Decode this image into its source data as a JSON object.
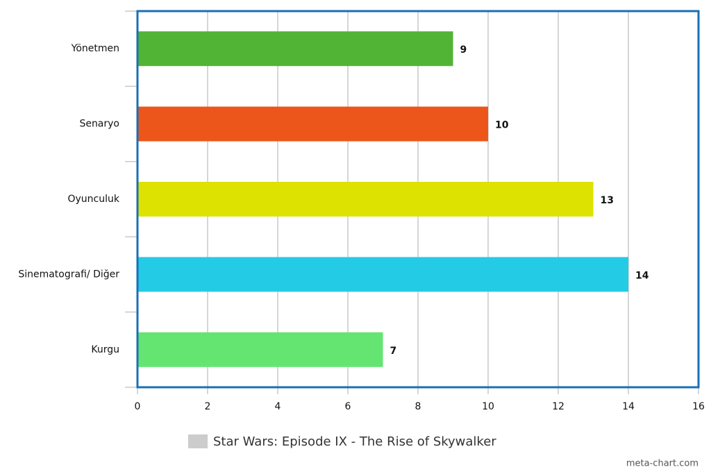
{
  "chart_data": {
    "type": "bar",
    "orientation": "horizontal",
    "categories": [
      "Yönetmen",
      "Senaryo",
      "Oyunculuk",
      "Sinematografi/ Diğer",
      "Kurgu"
    ],
    "series": [
      {
        "name": "Star Wars: Episode IX - The Rise of Skywalker",
        "color": "#cccccc",
        "values": [
          9,
          10,
          13,
          14,
          7
        ],
        "colors": [
          "#52b434",
          "#ed561b",
          "#dde200",
          "#24cbe5",
          "#64e572"
        ]
      }
    ],
    "xlim": [
      0,
      16
    ],
    "xticks": [
      0,
      2,
      4,
      6,
      8,
      10,
      12,
      14,
      16
    ],
    "grid": true,
    "legend": "bottom",
    "credit": "meta-chart.com"
  }
}
